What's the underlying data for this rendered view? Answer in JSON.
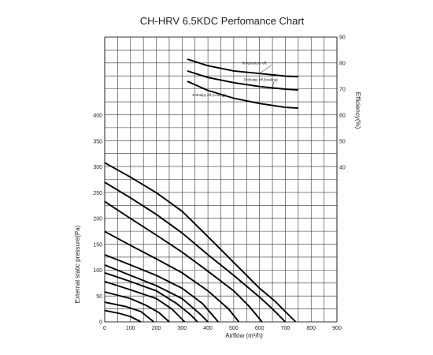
{
  "chart_data": {
    "type": "line",
    "title": "CH-HRV   6.5KDC Perfomance Chart",
    "xlabel": "Airflow (m³/h)",
    "ylabel": "External static pressure(Pa)",
    "y2label": "Efficiency(%)",
    "xlim": [
      0,
      900
    ],
    "ylim": [
      0,
      400
    ],
    "y2lim": [
      40,
      90
    ],
    "x_ticks": [
      "0",
      "100",
      "200",
      "300",
      "400",
      "500",
      "600",
      "700",
      "800",
      "900"
    ],
    "y_ticks": [
      "0",
      "50",
      "100",
      "150",
      "200",
      "250",
      "300",
      "350",
      "400"
    ],
    "y2_ticks": [
      "40",
      "50",
      "60",
      "70",
      "80",
      "90"
    ],
    "grid": true,
    "pressure_curves": [
      {
        "points": [
          [
            0,
            308
          ],
          [
            100,
            280
          ],
          [
            200,
            250
          ],
          [
            300,
            214
          ],
          [
            400,
            165
          ],
          [
            500,
            115
          ],
          [
            600,
            65
          ],
          [
            660,
            40
          ],
          [
            700,
            20
          ],
          [
            740,
            0
          ]
        ]
      },
      {
        "points": [
          [
            0,
            270
          ],
          [
            100,
            240
          ],
          [
            200,
            208
          ],
          [
            300,
            172
          ],
          [
            400,
            130
          ],
          [
            500,
            90
          ],
          [
            600,
            48
          ],
          [
            650,
            25
          ],
          [
            700,
            0
          ]
        ]
      },
      {
        "points": [
          [
            0,
            233
          ],
          [
            100,
            200
          ],
          [
            200,
            168
          ],
          [
            300,
            135
          ],
          [
            400,
            98
          ],
          [
            500,
            60
          ],
          [
            560,
            30
          ],
          [
            610,
            0
          ]
        ]
      },
      {
        "points": [
          [
            0,
            175
          ],
          [
            100,
            148
          ],
          [
            200,
            122
          ],
          [
            300,
            95
          ],
          [
            400,
            60
          ],
          [
            480,
            25
          ],
          [
            520,
            0
          ]
        ]
      },
      {
        "points": [
          [
            0,
            130
          ],
          [
            100,
            110
          ],
          [
            200,
            90
          ],
          [
            300,
            65
          ],
          [
            380,
            35
          ],
          [
            440,
            0
          ]
        ]
      },
      {
        "points": [
          [
            0,
            110
          ],
          [
            100,
            90
          ],
          [
            200,
            70
          ],
          [
            300,
            45
          ],
          [
            370,
            15
          ],
          [
            400,
            0
          ]
        ]
      },
      {
        "points": [
          [
            0,
            95
          ],
          [
            100,
            78
          ],
          [
            200,
            60
          ],
          [
            280,
            35
          ],
          [
            330,
            15
          ],
          [
            360,
            0
          ]
        ]
      },
      {
        "points": [
          [
            0,
            78
          ],
          [
            100,
            62
          ],
          [
            200,
            45
          ],
          [
            260,
            25
          ],
          [
            310,
            0
          ]
        ]
      },
      {
        "points": [
          [
            0,
            58
          ],
          [
            100,
            45
          ],
          [
            160,
            32
          ],
          [
            210,
            18
          ],
          [
            250,
            0
          ]
        ]
      },
      {
        "points": [
          [
            0,
            38
          ],
          [
            80,
            30
          ],
          [
            140,
            20
          ],
          [
            190,
            0
          ]
        ]
      },
      {
        "points": [
          [
            0,
            22
          ],
          [
            60,
            16
          ],
          [
            100,
            10
          ],
          [
            140,
            0
          ]
        ]
      }
    ],
    "efficiency_curves": [
      {
        "name": "Temperature eff.",
        "points": [
          [
            320,
            81.5
          ],
          [
            400,
            79
          ],
          [
            500,
            77
          ],
          [
            600,
            76
          ],
          [
            700,
            75
          ],
          [
            750,
            74.8
          ]
        ]
      },
      {
        "name": "Enthalpy eff.(heating)",
        "points": [
          [
            320,
            77
          ],
          [
            400,
            74.5
          ],
          [
            500,
            72.5
          ],
          [
            600,
            71
          ],
          [
            700,
            70
          ],
          [
            750,
            69.7
          ]
        ]
      },
      {
        "name": "Enthalpy eff.(cooling)",
        "points": [
          [
            320,
            73
          ],
          [
            400,
            69.5
          ],
          [
            500,
            66.5
          ],
          [
            600,
            64.5
          ],
          [
            700,
            63
          ],
          [
            750,
            62.7
          ]
        ]
      }
    ],
    "annotations": [
      {
        "text": "Temperature eff.",
        "x": 530,
        "y2": 79.5,
        "leader_to": [
          600,
          76
        ]
      },
      {
        "text": "Enthalpy eff.(heating)",
        "x": 540,
        "y2": 73.2,
        "leader_to": [
          650,
          70.6
        ]
      },
      {
        "text": "Enthalpy eff.(cooling)",
        "x": 340,
        "y2": 67.2,
        "leader_to": [
          460,
          67.5
        ]
      }
    ]
  }
}
